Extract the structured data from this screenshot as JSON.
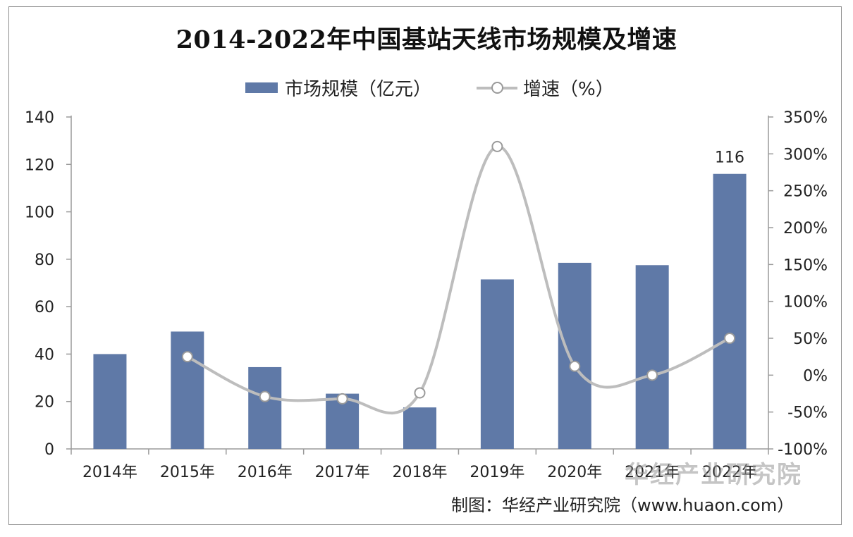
{
  "chart_data": {
    "type": "bar",
    "title": "2014-2022年中国基站天线市场规模及增速",
    "categories": [
      "2014年",
      "2015年",
      "2016年",
      "2017年",
      "2018年",
      "2019年",
      "2020年",
      "2021年",
      "2022年"
    ],
    "series": [
      {
        "name": "市场规模（亿元）",
        "type": "bar",
        "axis": "left",
        "color": "#5f79a7",
        "values": [
          40,
          49.5,
          34.5,
          23.3,
          17.5,
          71.5,
          78.5,
          77.5,
          116
        ]
      },
      {
        "name": "增速（%）",
        "type": "line",
        "axis": "right",
        "color": "#bdbdbd",
        "values": [
          null,
          25,
          -29,
          -32,
          -24,
          310,
          12,
          0,
          50
        ]
      }
    ],
    "data_labels": [
      {
        "index": 8,
        "text": "116"
      }
    ],
    "y_left": {
      "ylim": [
        0,
        140
      ],
      "ticks": [
        "0",
        "20",
        "40",
        "60",
        "80",
        "100",
        "120",
        "140"
      ]
    },
    "y_right": {
      "ylim": [
        -100,
        350
      ],
      "ticks": [
        "-100%",
        "-50%",
        "0%",
        "50%",
        "100%",
        "150%",
        "200%",
        "250%",
        "300%",
        "350%"
      ]
    },
    "legend_position": "top",
    "grid": false
  },
  "watermark": {
    "org": "华经产业研究院"
  },
  "source": "制图：华经产业研究院（www.huaon.com）"
}
